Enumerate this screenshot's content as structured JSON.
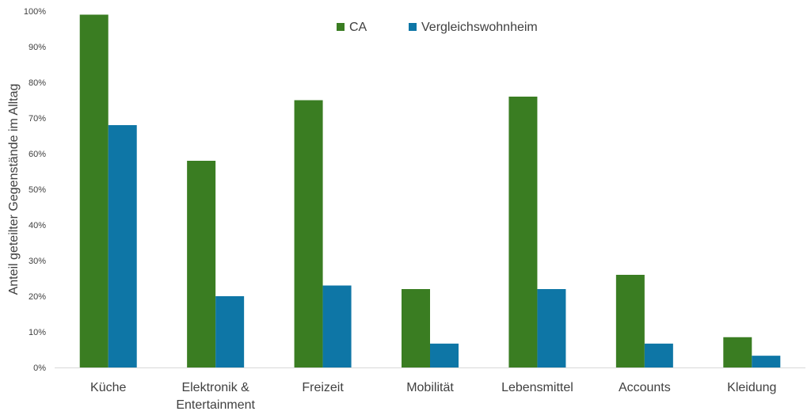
{
  "chart_data": {
    "type": "bar",
    "categories": [
      [
        "Küche"
      ],
      [
        "Elektronik &",
        "Entertainment"
      ],
      [
        "Freizeit"
      ],
      [
        "Mobilität"
      ],
      [
        "Lebensmittel"
      ],
      [
        "Accounts"
      ],
      [
        "Kleidung"
      ]
    ],
    "series": [
      {
        "name": "CA",
        "color": "#3a7d22",
        "values": [
          99,
          58,
          75,
          22,
          76,
          26,
          8.5
        ]
      },
      {
        "name": "Vergleichswohnheim",
        "color": "#0e76a6",
        "values": [
          68,
          20,
          23,
          6.7,
          22,
          6.7,
          3.3
        ]
      }
    ],
    "ylabel": "Anteil geteilter Gegenstände im Alltag",
    "ylim": [
      0,
      100
    ],
    "yticks": [
      "0%",
      "10%",
      "20%",
      "30%",
      "40%",
      "50%",
      "60%",
      "70%",
      "80%",
      "90%",
      "100%"
    ],
    "legend_position": "top-center",
    "grid": false,
    "axis_color": "#d9d9d9"
  }
}
